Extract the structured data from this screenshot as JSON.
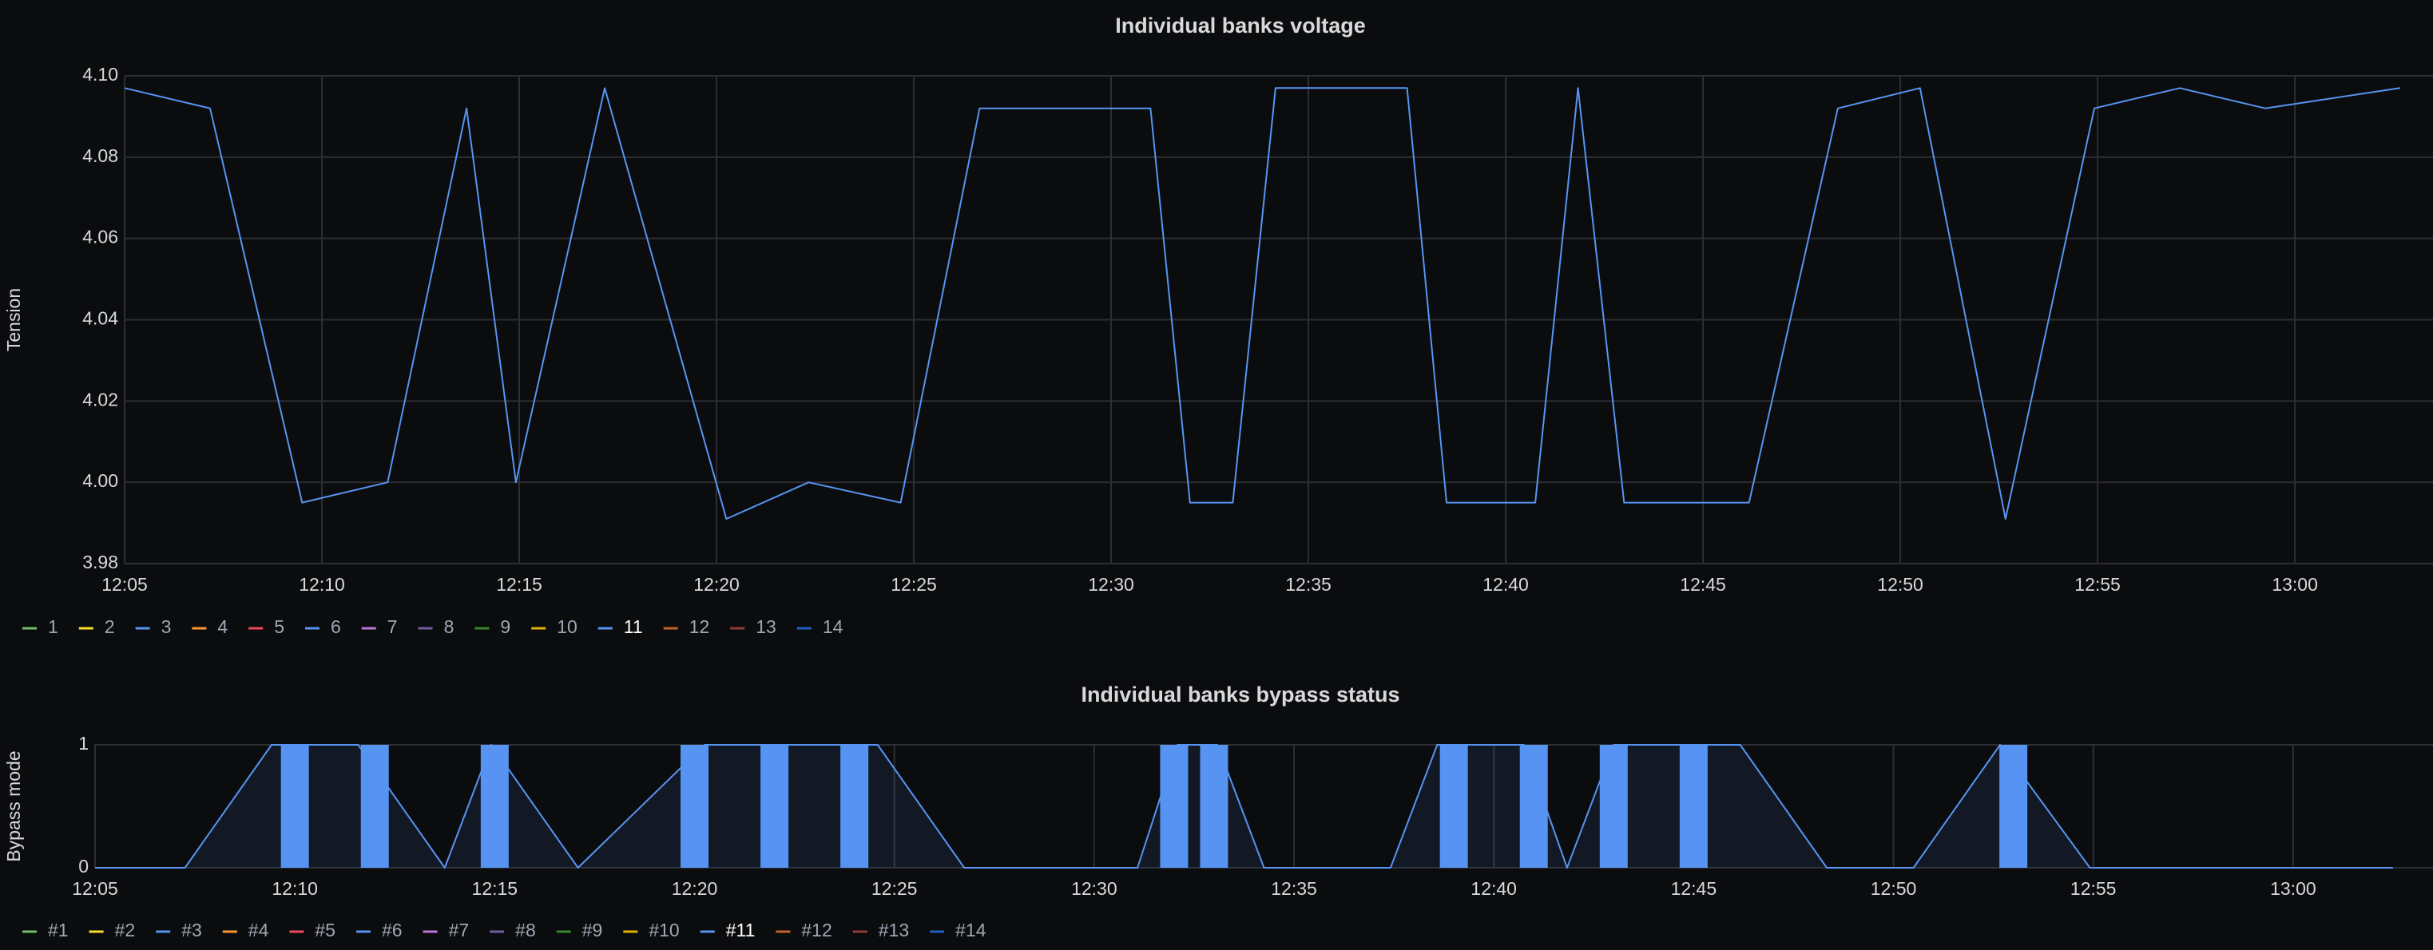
{
  "chart_data": [
    {
      "type": "line",
      "title": "Individual banks voltage",
      "xlabel": "",
      "ylabel": "Tension",
      "ylim": [
        3.98,
        4.1
      ],
      "yticks": [
        "4.10",
        "4.08",
        "4.06",
        "4.04",
        "4.02",
        "4.00",
        "3.98"
      ],
      "xticks": [
        "12:05",
        "12:10",
        "12:15",
        "12:20",
        "12:25",
        "12:30",
        "12:35",
        "12:40",
        "12:45",
        "12:50",
        "12:55",
        "13:00"
      ],
      "grid": true,
      "legend": [
        "1",
        "2",
        "3",
        "4",
        "5",
        "6",
        "7",
        "8",
        "9",
        "10",
        "11",
        "12",
        "13",
        "14"
      ],
      "legend_colors": [
        "#73bf69",
        "#fade2a",
        "#5794f2",
        "#ff9830",
        "#f2495c",
        "#5794f2",
        "#b877d9",
        "#705da0",
        "#37872d",
        "#e0b400",
        "#5794f2",
        "#c4622d",
        "#8f3b38",
        "#1f60c4"
      ],
      "legend_active": "11",
      "legend_position": "bottom-left",
      "series": [
        {
          "name": "11",
          "color": "#5794f2",
          "x": [
            "12:05",
            "12:07:10",
            "12:09:30",
            "12:11:40",
            "12:13:40",
            "12:14:55",
            "12:17:10",
            "12:20:15",
            "12:22:20",
            "12:24:40",
            "12:26:40",
            "12:31:00",
            "12:32:00",
            "12:33:05",
            "12:34:10",
            "12:37:30",
            "12:38:30",
            "12:40:45",
            "12:41:50",
            "12:43:00",
            "12:46:10",
            "12:48:25",
            "12:50:30",
            "12:52:40",
            "12:54:55",
            "12:57:05",
            "12:59:15",
            "13:02:40"
          ],
          "values": [
            4.097,
            4.092,
            3.995,
            4.0,
            4.092,
            4.0,
            4.097,
            3.991,
            4.0,
            3.995,
            4.092,
            4.092,
            3.995,
            3.995,
            4.097,
            4.097,
            3.995,
            3.995,
            4.097,
            3.995,
            3.995,
            4.092,
            4.097,
            3.991,
            4.092,
            4.097,
            4.092,
            4.097
          ]
        }
      ]
    },
    {
      "type": "area",
      "title": "Individual banks bypass status",
      "xlabel": "",
      "ylabel": "Bypass mode",
      "ylim": [
        0,
        1
      ],
      "yticks": [
        "1",
        "0"
      ],
      "xticks": [
        "12:05",
        "12:10",
        "12:15",
        "12:20",
        "12:25",
        "12:30",
        "12:35",
        "12:40",
        "12:45",
        "12:50",
        "12:55",
        "13:00"
      ],
      "grid": true,
      "legend": [
        "#1",
        "#2",
        "#3",
        "#4",
        "#5",
        "#6",
        "#7",
        "#8",
        "#9",
        "#10",
        "#11",
        "#12",
        "#13",
        "#14"
      ],
      "legend_colors": [
        "#73bf69",
        "#fade2a",
        "#5794f2",
        "#ff9830",
        "#f2495c",
        "#5794f2",
        "#b877d9",
        "#705da0",
        "#37872d",
        "#e0b400",
        "#5794f2",
        "#c4622d",
        "#8f3b38",
        "#1f60c4"
      ],
      "legend_active": "#11",
      "legend_position": "bottom-left",
      "series": [
        {
          "name": "#11",
          "color": "#5794f2",
          "x": [
            "12:05",
            "12:07:15",
            "12:09:25",
            "12:11:35",
            "12:13:45",
            "12:14:55",
            "12:17:05",
            "12:20:15",
            "12:24:35",
            "12:26:45",
            "12:31:05",
            "12:32:05",
            "12:33:05",
            "12:34:15",
            "12:37:25",
            "12:38:35",
            "12:40:45",
            "12:41:50",
            "12:43:00",
            "12:46:10",
            "12:48:20",
            "12:50:30",
            "12:52:40",
            "12:54:55",
            "13:02:30"
          ],
          "values": [
            0,
            0,
            1,
            1,
            0,
            1,
            0,
            1,
            1,
            0,
            0,
            1,
            1,
            0,
            0,
            1,
            1,
            0,
            1,
            1,
            0,
            0,
            1,
            0,
            0
          ]
        }
      ],
      "bars": {
        "color": "#5794f2",
        "times": [
          "12:10",
          "12:12",
          "12:15",
          "12:20",
          "12:22",
          "12:24",
          "12:32",
          "12:33",
          "12:39",
          "12:41",
          "12:43",
          "12:45",
          "12:53"
        ]
      }
    }
  ]
}
